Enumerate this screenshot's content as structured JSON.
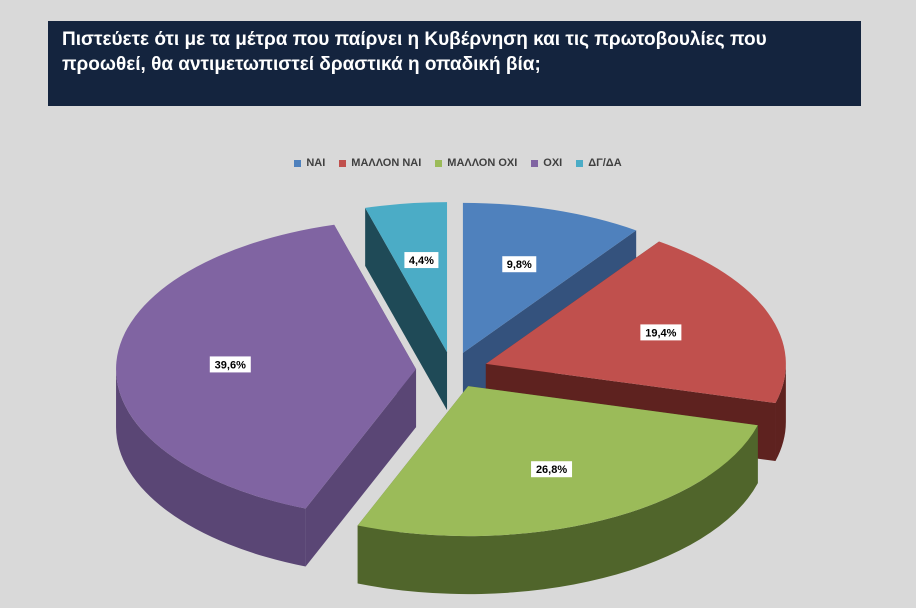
{
  "title": "Πιστεύετε ότι με τα μέτρα που παίρνει η Κυβέρνηση και τις πρωτοβουλίες που προωθεί, θα αντιμετωπιστεί δραστικά η οπαδική βία;",
  "chart_data": {
    "type": "pie",
    "title": "Πιστεύετε ότι με τα μέτρα που παίρνει η Κυβέρνηση και τις πρωτοβουλίες που προωθεί, θα αντιμετωπιστεί δραστικά η οπαδική βία;",
    "legend_position": "top",
    "exploded": true,
    "three_d": true,
    "slices": [
      {
        "name": "ΝΑΙ",
        "value": 9.8,
        "label": "9,8%",
        "color": "#4f81bd",
        "side": "#34527d"
      },
      {
        "name": "ΜΑΛΛΟΝ ΝΑΙ",
        "value": 19.4,
        "label": "19,4%",
        "color": "#c0504d",
        "side": "#5e221f"
      },
      {
        "name": "ΜΑΛΛΟΝ ΟΧΙ",
        "value": 26.8,
        "label": "26,8%",
        "color": "#9bbb59",
        "side": "#50652b"
      },
      {
        "name": "ΟΧΙ",
        "value": 39.6,
        "label": "39,6%",
        "color": "#8064a2",
        "side": "#5a4675"
      },
      {
        "name": "ΔΓ/ΔΑ",
        "value": 4.4,
        "label": "4,4%",
        "color": "#4bacc6",
        "side": "#1f4a57"
      }
    ]
  }
}
